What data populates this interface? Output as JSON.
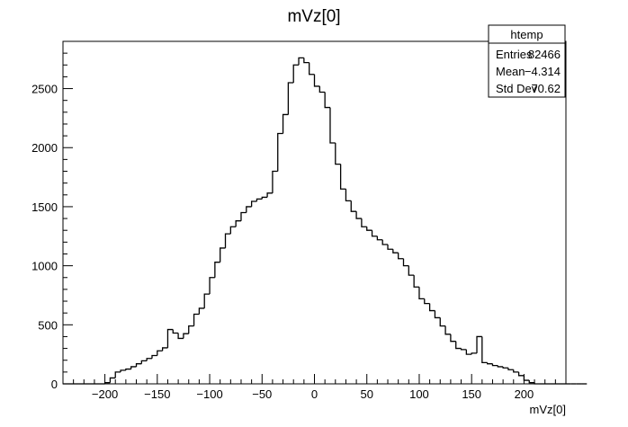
{
  "chart_data": {
    "type": "histogram",
    "title": "mVz[0]",
    "xlabel": "mVz[0]",
    "ylabel": "",
    "xlim": [
      -240,
      240
    ],
    "ylim": [
      0,
      2900
    ],
    "bin_width": 5,
    "x_start": -240,
    "x_ticks": [
      -200,
      -150,
      -100,
      -50,
      0,
      50,
      100,
      150,
      200
    ],
    "x_tick_labels": [
      "−200",
      "−150",
      "−100",
      "−50",
      "0",
      "50",
      "100",
      "150",
      "200"
    ],
    "y_ticks": [
      0,
      500,
      1000,
      1500,
      2000,
      2500
    ],
    "y_tick_labels": [
      "0",
      "500",
      "1000",
      "1500",
      "2000",
      "2500"
    ],
    "values": [
      0,
      0,
      0,
      0,
      0,
      0,
      0,
      0,
      10,
      50,
      100,
      115,
      125,
      145,
      170,
      195,
      215,
      240,
      280,
      305,
      460,
      430,
      385,
      425,
      490,
      590,
      640,
      760,
      900,
      1030,
      1150,
      1270,
      1330,
      1380,
      1450,
      1500,
      1545,
      1565,
      1580,
      1615,
      1800,
      2120,
      2280,
      2550,
      2700,
      2760,
      2720,
      2620,
      2520,
      2470,
      2340,
      2040,
      1860,
      1650,
      1550,
      1460,
      1400,
      1330,
      1300,
      1250,
      1220,
      1180,
      1140,
      1110,
      1060,
      1000,
      920,
      820,
      720,
      680,
      620,
      560,
      490,
      420,
      360,
      300,
      290,
      250,
      260,
      400,
      180,
      170,
      155,
      145,
      135,
      120,
      100,
      70,
      30,
      10,
      0,
      0,
      0,
      0,
      0,
      0,
      0,
      0,
      0,
      0
    ],
    "stats": {
      "title": "htemp",
      "rows": [
        {
          "label": "Entries",
          "value": "82466"
        },
        {
          "label": "Mean",
          "value": "−4.314"
        },
        {
          "label": "Std Dev",
          "value": "70.62"
        }
      ]
    },
    "line_color": "#000000",
    "grid": false
  }
}
